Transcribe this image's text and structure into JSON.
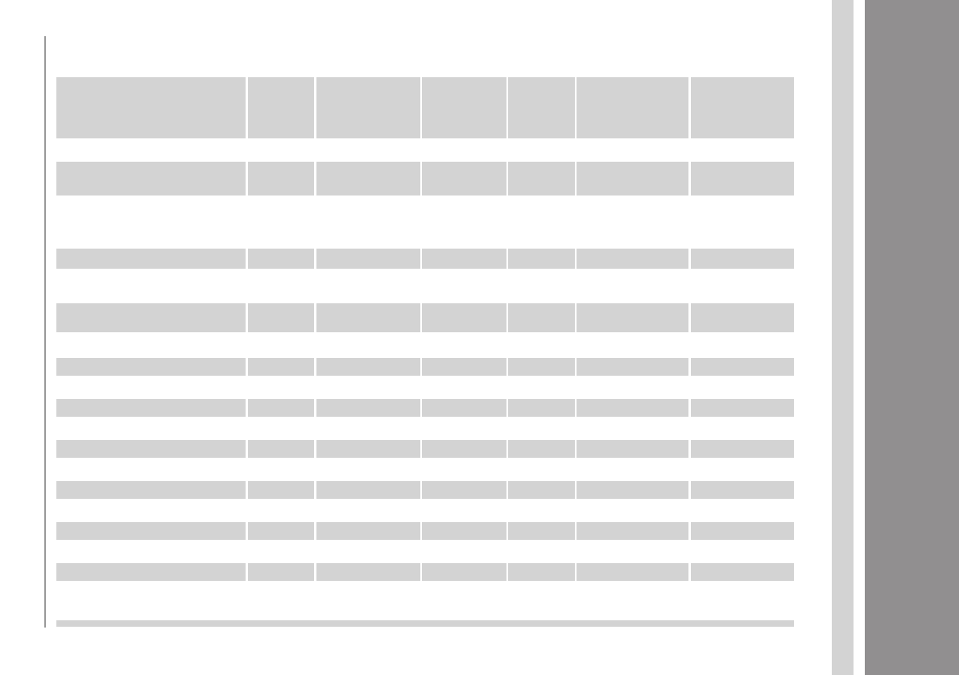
{
  "theme": {
    "placeholder_color": "#d3d3d3",
    "rule_color": "#999999",
    "side_panel_color": "#918f90"
  },
  "table": {
    "column_count": 7,
    "row_count": 10,
    "state": "loading-skeleton"
  }
}
